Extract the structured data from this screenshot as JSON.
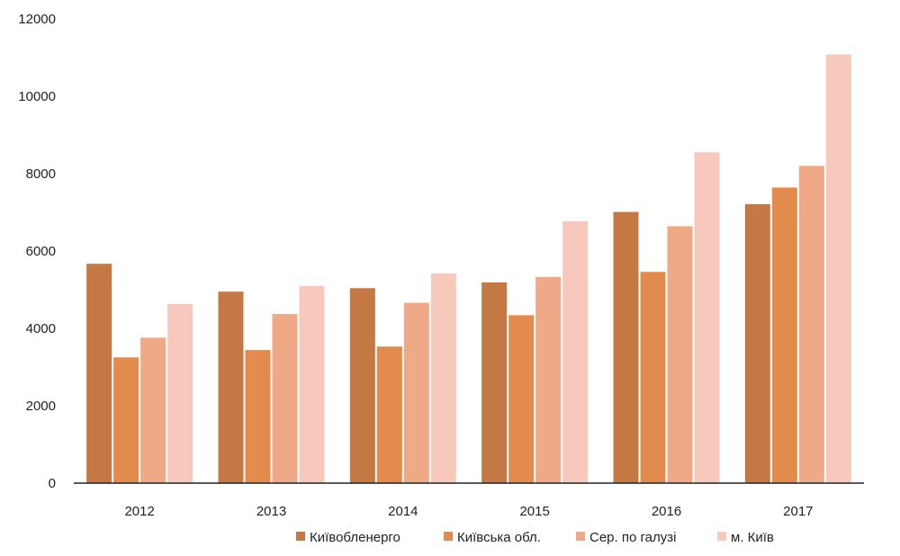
{
  "chart_data": {
    "type": "bar",
    "categories": [
      "2012",
      "2013",
      "2014",
      "2015",
      "2016",
      "2017"
    ],
    "series": [
      {
        "name": "Київобленерго",
        "color": "#C47844",
        "values": [
          5670,
          4950,
          5040,
          5190,
          7010,
          7210
        ]
      },
      {
        "name": "Київська обл.",
        "color": "#E38B4C",
        "values": [
          3250,
          3440,
          3530,
          4340,
          5460,
          7640
        ]
      },
      {
        "name": "Сер. по галузі",
        "color": "#F0A986",
        "values": [
          3760,
          4370,
          4660,
          5330,
          6640,
          8200
        ]
      },
      {
        "name": "м. Київ",
        "color": "#F7C9BD",
        "values": [
          4630,
          5100,
          5420,
          6770,
          8550,
          11080
        ]
      }
    ],
    "ylim": [
      0,
      12000
    ],
    "yticks": [
      "0",
      "2000",
      "4000",
      "6000",
      "8000",
      "10000",
      "12000"
    ],
    "grid": false,
    "legend_position": "bottom"
  }
}
